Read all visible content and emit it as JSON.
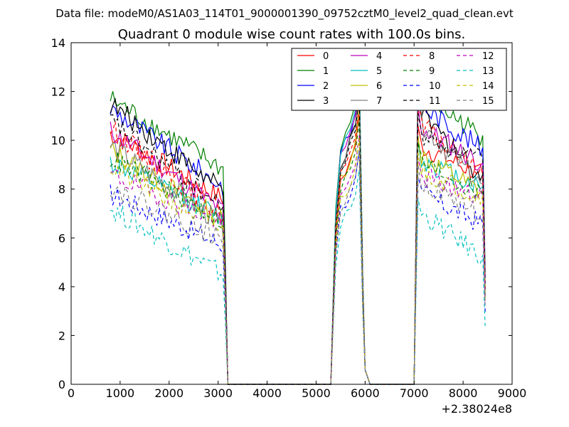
{
  "figure": {
    "suptitle": "Data file: modeM0/AS1A03_114T01_9000001390_09752cztM0_level2_quad_clean.evt",
    "x_offset_label": "+2.38024e8"
  },
  "chart_data": {
    "type": "line",
    "title": "Quadrant 0 module wise count rates with 100.0s bins.",
    "xlabel": "",
    "ylabel": "",
    "xlim": [
      0,
      9000
    ],
    "ylim": [
      0,
      14
    ],
    "xticks": [
      "0",
      "1000",
      "2000",
      "3000",
      "4000",
      "5000",
      "6000",
      "7000",
      "8000",
      "9000"
    ],
    "yticks": [
      "0",
      "2",
      "4",
      "6",
      "8",
      "10",
      "12",
      "14"
    ],
    "grid": false,
    "legend_position": "top-right",
    "legend_columns": 4,
    "segments": [
      [
        800,
        3200
      ],
      [
        5300,
        6100
      ],
      [
        7000,
        8450
      ]
    ],
    "series": [
      {
        "name": "0",
        "color": "#ff0000",
        "style": "solid",
        "a": 10.3,
        "b": 7.6,
        "p": 11.1,
        "c": 10.6,
        "d": 8.6
      },
      {
        "name": "1",
        "color": "#008000",
        "style": "solid",
        "a": 11.7,
        "b": 8.8,
        "p": 13.1,
        "c": 12.9,
        "d": 10.2
      },
      {
        "name": "2",
        "color": "#0000ff",
        "style": "solid",
        "a": 11.3,
        "b": 8.1,
        "p": 12.6,
        "c": 12.4,
        "d": 9.7
      },
      {
        "name": "3",
        "color": "#000000",
        "style": "solid",
        "a": 11.5,
        "b": 7.9,
        "p": 12.1,
        "c": 12.0,
        "d": 8.6
      },
      {
        "name": "4",
        "color": "#bf00bf",
        "style": "solid",
        "a": 10.4,
        "b": 7.1,
        "p": 12.5,
        "c": 11.4,
        "d": 9.1
      },
      {
        "name": "5",
        "color": "#00bfbf",
        "style": "solid",
        "a": 9.1,
        "b": 6.8,
        "p": 12.8,
        "c": 10.0,
        "d": 8.1
      },
      {
        "name": "6",
        "color": "#bfbf00",
        "style": "solid",
        "a": 9.6,
        "b": 6.7,
        "p": 11.3,
        "c": 10.2,
        "d": 7.9
      },
      {
        "name": "7",
        "color": "#808080",
        "style": "solid",
        "a": 9.8,
        "b": 6.5,
        "p": 12.0,
        "c": 11.6,
        "d": 8.2
      },
      {
        "name": "8",
        "color": "#ff0000",
        "style": "dashed",
        "a": 10.5,
        "b": 6.9,
        "p": 11.5,
        "c": 11.5,
        "d": 8.7
      },
      {
        "name": "9",
        "color": "#008000",
        "style": "dashed",
        "a": 9.3,
        "b": 6.7,
        "p": 10.8,
        "c": 9.9,
        "d": 7.8
      },
      {
        "name": "10",
        "color": "#0000ff",
        "style": "dashed",
        "a": 7.8,
        "b": 5.7,
        "p": 9.6,
        "c": 8.5,
        "d": 6.6
      },
      {
        "name": "11",
        "color": "#000000",
        "style": "dashed",
        "a": 10.8,
        "b": 7.2,
        "p": 11.8,
        "c": 11.1,
        "d": 9.2
      },
      {
        "name": "12",
        "color": "#bf00bf",
        "style": "dashed",
        "a": 8.6,
        "b": 6.6,
        "p": 10.2,
        "c": 9.3,
        "d": 7.6
      },
      {
        "name": "13",
        "color": "#00bfbf",
        "style": "dashed",
        "a": 7.2,
        "b": 4.5,
        "p": 8.8,
        "c": 7.6,
        "d": 5.3
      },
      {
        "name": "14",
        "color": "#bfbf00",
        "style": "dashed",
        "a": 8.9,
        "b": 6.3,
        "p": 10.1,
        "c": 9.5,
        "d": 7.7
      },
      {
        "name": "15",
        "color": "#808080",
        "style": "dashed",
        "a": 8.1,
        "b": 5.9,
        "p": 9.6,
        "c": 9.0,
        "d": 7.0
      }
    ]
  }
}
